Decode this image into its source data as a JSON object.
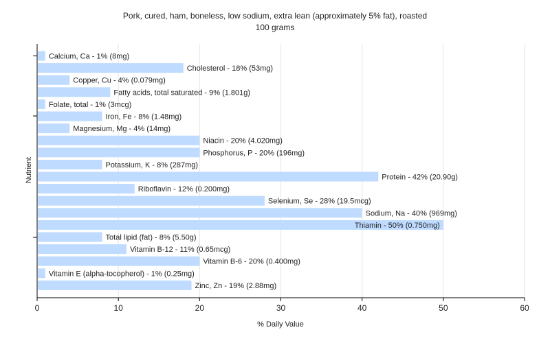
{
  "chart_data": {
    "type": "bar",
    "orientation": "horizontal",
    "title": "Pork, cured, ham, boneless, low sodium, extra lean (approximately 5% fat), roasted",
    "subtitle": "100 grams",
    "xlabel": "% Daily Value",
    "ylabel": "Nutrient",
    "xlim": [
      0,
      60
    ],
    "xticks": [
      0,
      10,
      20,
      30,
      40,
      50,
      60
    ],
    "grid": true,
    "bar_color": "#bfdbff",
    "grid_color": "#e6e6e6",
    "axis_color": "#000000",
    "categories": [
      "Calcium, Ca",
      "Cholesterol",
      "Copper, Cu",
      "Fatty acids, total saturated",
      "Folate, total",
      "Iron, Fe",
      "Magnesium, Mg",
      "Niacin",
      "Phosphorus, P",
      "Potassium, K",
      "Protein",
      "Riboflavin",
      "Selenium, Se",
      "Sodium, Na",
      "Thiamin",
      "Total lipid (fat)",
      "Vitamin B-12",
      "Vitamin B-6",
      "Vitamin E (alpha-tocopherol)",
      "Zinc, Zn"
    ],
    "values": [
      1,
      18,
      4,
      9,
      1,
      8,
      4,
      20,
      20,
      8,
      42,
      12,
      28,
      40,
      50,
      8,
      11,
      20,
      1,
      19
    ],
    "bar_labels": [
      "Calcium, Ca - 1% (8mg)",
      "Cholesterol - 18% (53mg)",
      "Copper, Cu - 4% (0.079mg)",
      "Fatty acids, total saturated - 9% (1.801g)",
      "Folate, total - 1% (3mcg)",
      "Iron, Fe - 8% (1.48mg)",
      "Magnesium, Mg - 4% (14mg)",
      "Niacin - 20% (4.020mg)",
      "Phosphorus, P - 20% (196mg)",
      "Potassium, K - 8% (287mg)",
      "Protein - 42% (20.90g)",
      "Riboflavin - 12% (0.200mg)",
      "Selenium, Se - 28% (19.5mcg)",
      "Sodium, Na - 40% (969mg)",
      "Thiamin - 50% (0.750mg)",
      "Total lipid (fat) - 8% (5.50g)",
      "Vitamin B-12 - 11% (0.65mcg)",
      "Vitamin B-6 - 20% (0.400mg)",
      "Vitamin E (alpha-tocopherol) - 1% (0.25mg)",
      "Zinc, Zn - 19% (2.88mg)"
    ]
  }
}
